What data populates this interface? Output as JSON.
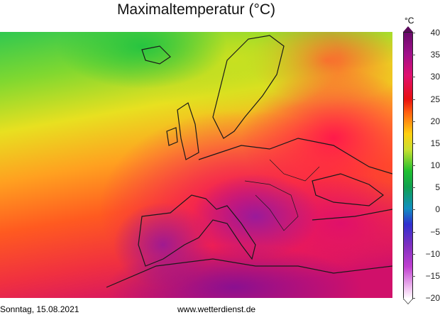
{
  "title": "Maximaltemperatur (°C)",
  "colorbar": {
    "unit": "°C",
    "ticks": [
      "40",
      "35",
      "30",
      "25",
      "20",
      "15",
      "10",
      "5",
      "0",
      "−5",
      "−10",
      "−15",
      "−20"
    ],
    "min": -20,
    "max": 40
  },
  "footer": {
    "date": "Sonntag, 15.08.2021",
    "url": "www.wetterdienst.de"
  }
}
